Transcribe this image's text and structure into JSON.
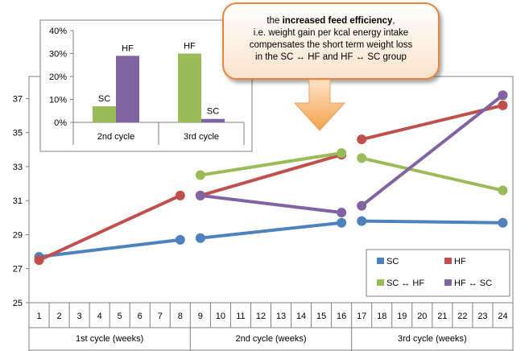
{
  "callout": {
    "line1_prefix": "the ",
    "line1_bold": "increased feed efficiency",
    "line1_suffix": ",",
    "line2": "i.e. weight gain per kcal energy intake",
    "line3": "compensates the short  term weight loss",
    "line4": "in the SC ↔ HF and HF ↔ SC group"
  },
  "colors": {
    "SC": "#4f81bd",
    "HF": "#c0504d",
    "SC_HF": "#9bbb59",
    "HF_SC": "#8064a2"
  },
  "chart_data": [
    {
      "type": "line",
      "title": "",
      "x_ticks": [
        1,
        2,
        3,
        4,
        5,
        6,
        7,
        8,
        9,
        10,
        11,
        12,
        13,
        14,
        15,
        16,
        17,
        18,
        19,
        20,
        21,
        22,
        23,
        24
      ],
      "y_ticks": [
        "25",
        "27",
        "29",
        "31",
        "33",
        "35",
        "37"
      ],
      "ylim": [
        25,
        38.3
      ],
      "groups": [
        "1st cycle (weeks)",
        "2nd cycle (weeks)",
        "3rd cycle (weeks)"
      ],
      "series": [
        {
          "key": "SC",
          "name": "SC",
          "segments": [
            [
              [
                1,
                27.7
              ],
              [
                8,
                28.7
              ]
            ],
            [
              [
                9,
                28.8
              ],
              [
                16,
                29.7
              ]
            ],
            [
              [
                17,
                29.8
              ],
              [
                24,
                29.7
              ]
            ]
          ]
        },
        {
          "key": "HF",
          "name": "HF",
          "segments": [
            [
              [
                1,
                27.5
              ],
              [
                8,
                31.3
              ]
            ],
            [
              [
                9,
                31.3
              ],
              [
                16,
                33.7
              ]
            ],
            [
              [
                17,
                34.6
              ],
              [
                24,
                36.6
              ]
            ]
          ]
        },
        {
          "key": "SC_HF",
          "name": "SC ↔ HF",
          "segments": [
            [
              [
                9,
                32.5
              ],
              [
                16,
                33.8
              ]
            ],
            [
              [
                17,
                33.5
              ],
              [
                24,
                31.6
              ]
            ]
          ]
        },
        {
          "key": "HF_SC",
          "name": "HF ↔ SC",
          "segments": [
            [
              [
                9,
                31.3
              ],
              [
                16,
                30.3
              ]
            ],
            [
              [
                17,
                30.7
              ],
              [
                24,
                37.2
              ]
            ]
          ]
        }
      ],
      "legend": {
        "position": "bottom-right",
        "entries": [
          "SC",
          "HF",
          "SC ↔ HF",
          "HF ↔ SC"
        ]
      }
    },
    {
      "type": "bar",
      "title": "",
      "categories": [
        "2nd cycle",
        "3rd cycle"
      ],
      "y_ticks": [
        "0%",
        "10%",
        "20%",
        "30%",
        "40%"
      ],
      "ylim": [
        0,
        40
      ],
      "series": [
        {
          "key": "SC_HF",
          "name": "SC",
          "values": [
            7,
            30
          ]
        },
        {
          "key": "HF_SC",
          "name": "HF",
          "values": [
            29,
            1.5
          ]
        }
      ],
      "bar_labels": [
        {
          "category": 0,
          "series": 0,
          "text": "SC"
        },
        {
          "category": 0,
          "series": 1,
          "text": "HF"
        },
        {
          "category": 1,
          "series": 0,
          "text": "HF"
        },
        {
          "category": 1,
          "series": 1,
          "text": "SC"
        }
      ]
    }
  ]
}
